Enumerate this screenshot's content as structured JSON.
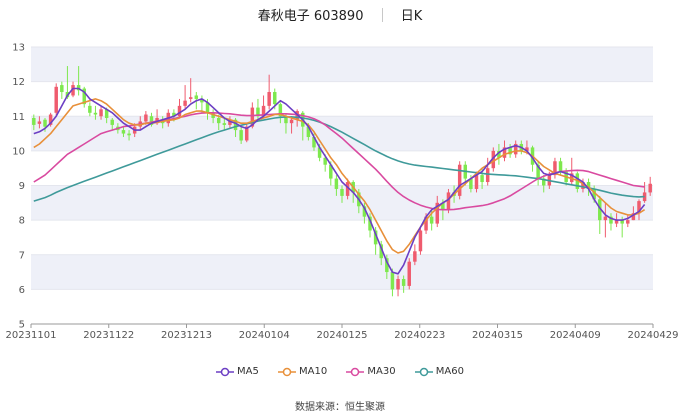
{
  "header": {
    "stock_name": "春秋电子 603890",
    "period": "日K"
  },
  "source_text": "数据来源：恒生聚源",
  "colors": {
    "up": "#ef5b6e",
    "down": "#7ee84e",
    "ma5": "#6c3fc4",
    "ma10": "#e8903a",
    "ma30": "#d94aa0",
    "ma60": "#3f9a9a",
    "band": "#eef0f8"
  },
  "chart_data": {
    "type": "candlestick",
    "ylim": [
      5,
      13
    ],
    "y_ticks": [
      "5",
      "6",
      "7",
      "8",
      "9",
      "10",
      "11",
      "12",
      "13"
    ],
    "x_tick_labels": [
      "20231101",
      "20231122",
      "20231213",
      "20240104",
      "20240125",
      "20240223",
      "20240315",
      "20240409",
      "20240429"
    ],
    "legend": [
      "MA5",
      "MA10",
      "MA30",
      "MA60"
    ],
    "candles": [
      [
        10.95,
        10.75,
        11.05,
        10.6
      ],
      [
        10.78,
        10.85,
        11.0,
        10.65
      ],
      [
        10.9,
        10.7,
        10.95,
        10.55
      ],
      [
        10.75,
        11.05,
        11.1,
        10.7
      ],
      [
        11.1,
        11.85,
        11.95,
        11.0
      ],
      [
        11.9,
        11.7,
        12.0,
        11.5
      ],
      [
        11.7,
        11.55,
        12.45,
        11.5
      ],
      [
        11.6,
        11.9,
        12.0,
        11.55
      ],
      [
        11.9,
        11.75,
        12.45,
        11.6
      ],
      [
        11.8,
        11.35,
        11.85,
        11.25
      ],
      [
        11.3,
        11.1,
        11.4,
        11.0
      ],
      [
        11.1,
        11.05,
        11.3,
        10.9
      ],
      [
        11.0,
        11.2,
        11.3,
        10.9
      ],
      [
        11.2,
        10.95,
        11.25,
        10.8
      ],
      [
        10.9,
        10.75,
        10.95,
        10.6
      ],
      [
        10.7,
        10.6,
        10.8,
        10.5
      ],
      [
        10.6,
        10.5,
        10.7,
        10.4
      ],
      [
        10.5,
        10.45,
        10.6,
        10.3
      ],
      [
        10.5,
        10.7,
        10.8,
        10.4
      ],
      [
        10.7,
        10.85,
        11.0,
        10.6
      ],
      [
        10.85,
        11.05,
        11.15,
        10.75
      ],
      [
        11.0,
        10.75,
        11.1,
        10.7
      ],
      [
        10.8,
        10.95,
        11.2,
        10.75
      ],
      [
        10.9,
        10.8,
        11.0,
        10.65
      ],
      [
        10.8,
        11.1,
        11.2,
        10.7
      ],
      [
        11.1,
        11.0,
        11.2,
        10.85
      ],
      [
        11.0,
        11.3,
        11.5,
        10.95
      ],
      [
        11.3,
        11.45,
        11.9,
        11.2
      ],
      [
        11.5,
        11.55,
        12.1,
        11.4
      ],
      [
        11.6,
        11.5,
        11.7,
        11.2
      ],
      [
        11.5,
        11.4,
        11.6,
        11.1
      ],
      [
        11.4,
        11.1,
        11.5,
        10.9
      ],
      [
        11.1,
        10.95,
        11.2,
        10.8
      ],
      [
        10.95,
        10.8,
        11.05,
        10.6
      ],
      [
        10.8,
        10.75,
        10.95,
        10.6
      ],
      [
        10.75,
        10.9,
        11.0,
        10.65
      ],
      [
        10.9,
        10.6,
        10.95,
        10.4
      ],
      [
        10.6,
        10.3,
        10.7,
        10.2
      ],
      [
        10.3,
        10.7,
        10.8,
        10.25
      ],
      [
        10.7,
        11.25,
        11.4,
        10.65
      ],
      [
        11.25,
        11.0,
        11.5,
        10.9
      ],
      [
        11.0,
        11.3,
        11.6,
        10.95
      ],
      [
        11.3,
        11.7,
        12.2,
        11.2
      ],
      [
        11.7,
        11.35,
        11.8,
        11.2
      ],
      [
        11.35,
        11.0,
        11.4,
        10.8
      ],
      [
        11.0,
        10.8,
        11.05,
        10.5
      ],
      [
        10.8,
        10.9,
        11.0,
        10.5
      ],
      [
        10.9,
        11.15,
        11.2,
        10.7
      ],
      [
        11.1,
        10.7,
        11.15,
        10.3
      ],
      [
        10.7,
        10.4,
        10.8,
        10.3
      ],
      [
        10.4,
        10.1,
        10.5,
        10.0
      ],
      [
        10.1,
        9.8,
        10.2,
        9.7
      ],
      [
        9.8,
        9.6,
        9.9,
        9.4
      ],
      [
        9.6,
        9.2,
        9.7,
        9.0
      ],
      [
        9.2,
        8.9,
        9.3,
        8.7
      ],
      [
        8.9,
        8.7,
        9.0,
        8.5
      ],
      [
        8.7,
        9.1,
        9.2,
        8.6
      ],
      [
        9.1,
        8.8,
        9.15,
        8.5
      ],
      [
        8.8,
        8.4,
        8.9,
        8.2
      ],
      [
        8.4,
        8.1,
        8.5,
        7.9
      ],
      [
        8.1,
        7.7,
        8.2,
        7.5
      ],
      [
        7.7,
        7.3,
        7.8,
        7.0
      ],
      [
        7.3,
        6.9,
        7.4,
        6.7
      ],
      [
        6.9,
        6.5,
        7.0,
        6.3
      ],
      [
        6.5,
        6.0,
        6.6,
        5.8
      ],
      [
        6.0,
        6.3,
        6.4,
        5.8
      ],
      [
        6.3,
        6.1,
        6.4,
        5.9
      ],
      [
        6.1,
        6.8,
        6.9,
        6.0
      ],
      [
        6.8,
        7.1,
        7.3,
        6.7
      ],
      [
        7.1,
        7.7,
        7.8,
        7.0
      ],
      [
        7.7,
        8.1,
        8.2,
        7.6
      ],
      [
        8.1,
        7.9,
        8.3,
        7.7
      ],
      [
        7.9,
        8.5,
        8.7,
        7.8
      ],
      [
        8.5,
        8.3,
        8.6,
        8.0
      ],
      [
        8.3,
        8.8,
        8.9,
        8.2
      ],
      [
        8.8,
        8.7,
        9.0,
        8.5
      ],
      [
        8.7,
        9.6,
        9.7,
        8.6
      ],
      [
        9.6,
        9.2,
        9.7,
        9.0
      ],
      [
        9.2,
        8.9,
        9.3,
        8.8
      ],
      [
        8.9,
        9.3,
        9.4,
        8.8
      ],
      [
        9.3,
        9.1,
        9.5,
        8.9
      ],
      [
        9.1,
        9.5,
        9.8,
        9.0
      ],
      [
        9.5,
        10.0,
        10.1,
        9.4
      ],
      [
        10.0,
        9.8,
        10.2,
        9.6
      ],
      [
        9.8,
        10.1,
        10.3,
        9.7
      ],
      [
        10.1,
        9.9,
        10.2,
        9.8
      ],
      [
        9.9,
        10.2,
        10.3,
        9.8
      ],
      [
        10.2,
        10.0,
        10.3,
        9.9
      ],
      [
        10.0,
        10.1,
        10.3,
        9.9
      ],
      [
        10.1,
        9.6,
        10.15,
        9.4
      ],
      [
        9.6,
        9.2,
        9.7,
        9.0
      ],
      [
        9.2,
        9.0,
        9.3,
        8.8
      ],
      [
        9.0,
        9.3,
        9.4,
        8.9
      ],
      [
        9.3,
        9.7,
        9.8,
        9.2
      ],
      [
        9.7,
        9.4,
        9.8,
        9.3
      ],
      [
        9.4,
        9.1,
        9.5,
        9.0
      ],
      [
        9.1,
        9.35,
        9.8,
        9.0
      ],
      [
        9.35,
        8.9,
        9.4,
        8.8
      ],
      [
        8.9,
        9.1,
        9.2,
        8.8
      ],
      [
        9.1,
        8.9,
        9.2,
        8.7
      ],
      [
        8.9,
        8.6,
        9.0,
        8.5
      ],
      [
        8.6,
        8.0,
        8.7,
        7.6
      ],
      [
        8.0,
        8.1,
        8.5,
        7.5
      ],
      [
        8.1,
        7.9,
        8.2,
        7.7
      ],
      [
        7.9,
        8.0,
        8.2,
        7.8
      ],
      [
        8.0,
        7.9,
        8.1,
        7.5
      ],
      [
        7.9,
        8.0,
        8.15,
        7.8
      ],
      [
        8.0,
        8.2,
        8.4,
        8.0
      ],
      [
        8.2,
        8.55,
        8.6,
        8.0
      ],
      [
        8.55,
        8.8,
        9.1,
        8.5
      ],
      [
        8.8,
        9.05,
        9.25,
        8.7
      ]
    ],
    "ma5": [
      10.5,
      10.55,
      10.65,
      10.8,
      11.0,
      11.3,
      11.6,
      11.8,
      11.8,
      11.7,
      11.5,
      11.4,
      11.3,
      11.2,
      11.1,
      10.95,
      10.8,
      10.7,
      10.6,
      10.6,
      10.7,
      10.8,
      10.85,
      10.9,
      10.95,
      11.0,
      11.1,
      11.2,
      11.35,
      11.45,
      11.5,
      11.4,
      11.25,
      11.1,
      10.95,
      10.85,
      10.8,
      10.7,
      10.65,
      10.75,
      10.9,
      11.0,
      11.15,
      11.3,
      11.45,
      11.35,
      11.2,
      11.05,
      10.9,
      10.7,
      10.4,
      10.1,
      9.85,
      9.6,
      9.35,
      9.1,
      8.95,
      8.8,
      8.6,
      8.35,
      8.0,
      7.6,
      7.2,
      6.8,
      6.5,
      6.45,
      6.7,
      7.1,
      7.5,
      7.8,
      8.1,
      8.3,
      8.4,
      8.5,
      8.6,
      8.8,
      9.0,
      9.1,
      9.2,
      9.3,
      9.4,
      9.6,
      9.8,
      9.95,
      10.05,
      10.1,
      10.15,
      10.1,
      10.0,
      9.8,
      9.55,
      9.35,
      9.3,
      9.35,
      9.4,
      9.35,
      9.3,
      9.2,
      9.1,
      8.9,
      8.6,
      8.35,
      8.15,
      8.05,
      8.0,
      8.0,
      8.05,
      8.15,
      8.25,
      8.45
    ],
    "ma10": [
      10.1,
      10.2,
      10.35,
      10.5,
      10.7,
      10.9,
      11.1,
      11.3,
      11.35,
      11.4,
      11.45,
      11.5,
      11.45,
      11.35,
      11.2,
      11.05,
      10.9,
      10.8,
      10.75,
      10.75,
      10.8,
      10.8,
      10.82,
      10.85,
      10.88,
      10.9,
      10.95,
      11.05,
      11.1,
      11.15,
      11.15,
      11.1,
      11.05,
      11.0,
      10.95,
      10.9,
      10.85,
      10.8,
      10.8,
      10.85,
      10.9,
      10.95,
      11.0,
      11.05,
      11.05,
      11.0,
      10.95,
      10.9,
      10.85,
      10.75,
      10.55,
      10.3,
      10.05,
      9.8,
      9.6,
      9.35,
      9.15,
      8.95,
      8.75,
      8.55,
      8.3,
      8.0,
      7.7,
      7.4,
      7.15,
      7.05,
      7.1,
      7.3,
      7.55,
      7.8,
      8.0,
      8.2,
      8.35,
      8.5,
      8.6,
      8.75,
      8.9,
      9.05,
      9.2,
      9.35,
      9.5,
      9.6,
      9.7,
      9.8,
      9.9,
      9.95,
      10.0,
      10.0,
      9.95,
      9.85,
      9.7,
      9.55,
      9.45,
      9.35,
      9.3,
      9.25,
      9.2,
      9.15,
      9.05,
      8.95,
      8.8,
      8.65,
      8.5,
      8.35,
      8.25,
      8.2,
      8.15,
      8.15,
      8.2,
      8.3
    ],
    "ma30": [
      9.1,
      9.2,
      9.3,
      9.45,
      9.6,
      9.75,
      9.9,
      10.0,
      10.1,
      10.2,
      10.3,
      10.4,
      10.5,
      10.55,
      10.6,
      10.65,
      10.7,
      10.72,
      10.75,
      10.78,
      10.8,
      10.83,
      10.86,
      10.88,
      10.9,
      10.93,
      10.97,
      11.0,
      11.04,
      11.07,
      11.09,
      11.1,
      11.1,
      11.09,
      11.08,
      11.07,
      11.05,
      11.03,
      11.02,
      11.02,
      11.03,
      11.04,
      11.05,
      11.06,
      11.07,
      11.07,
      11.06,
      11.05,
      11.02,
      10.98,
      10.93,
      10.85,
      10.75,
      10.62,
      10.5,
      10.37,
      10.22,
      10.07,
      9.92,
      9.77,
      9.62,
      9.47,
      9.3,
      9.12,
      8.95,
      8.8,
      8.68,
      8.58,
      8.5,
      8.43,
      8.38,
      8.34,
      8.31,
      8.3,
      8.3,
      8.31,
      8.33,
      8.36,
      8.38,
      8.4,
      8.42,
      8.45,
      8.5,
      8.56,
      8.62,
      8.7,
      8.8,
      8.9,
      9.0,
      9.1,
      9.2,
      9.27,
      9.33,
      9.37,
      9.4,
      9.42,
      9.43,
      9.44,
      9.43,
      9.4,
      9.35,
      9.3,
      9.25,
      9.2,
      9.15,
      9.1,
      9.05,
      9.0,
      8.98,
      8.96
    ],
    "ma60": [
      8.55,
      8.6,
      8.65,
      8.72,
      8.8,
      8.87,
      8.94,
      9.0,
      9.06,
      9.12,
      9.18,
      9.24,
      9.3,
      9.36,
      9.42,
      9.48,
      9.54,
      9.6,
      9.66,
      9.72,
      9.78,
      9.84,
      9.9,
      9.96,
      10.02,
      10.08,
      10.14,
      10.2,
      10.26,
      10.32,
      10.38,
      10.44,
      10.5,
      10.55,
      10.6,
      10.65,
      10.7,
      10.74,
      10.78,
      10.82,
      10.86,
      10.89,
      10.92,
      10.95,
      10.97,
      10.98,
      10.98,
      10.97,
      10.95,
      10.92,
      10.88,
      10.83,
      10.77,
      10.7,
      10.62,
      10.54,
      10.45,
      10.36,
      10.27,
      10.18,
      10.09,
      10.0,
      9.92,
      9.84,
      9.77,
      9.71,
      9.66,
      9.62,
      9.59,
      9.57,
      9.55,
      9.53,
      9.51,
      9.49,
      9.47,
      9.45,
      9.43,
      9.41,
      9.39,
      9.37,
      9.35,
      9.33,
      9.32,
      9.31,
      9.3,
      9.29,
      9.28,
      9.26,
      9.24,
      9.22,
      9.2,
      9.17,
      9.14,
      9.11,
      9.08,
      9.05,
      9.02,
      8.99,
      8.96,
      8.93,
      8.9,
      8.86,
      8.82,
      8.78,
      8.75,
      8.72,
      8.7,
      8.68,
      8.67,
      8.68
    ]
  }
}
